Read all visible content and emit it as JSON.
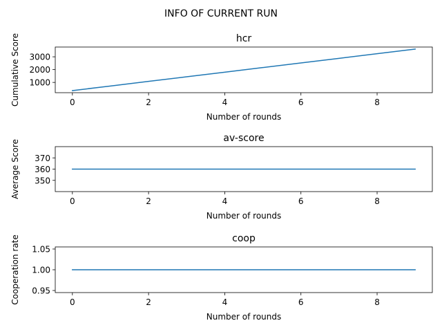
{
  "figure": {
    "suptitle": "INFO OF CURRENT RUN"
  },
  "colors": {
    "line": "#1f77b4",
    "axes": "#000000",
    "background": "#ffffff"
  },
  "chart_data": [
    {
      "type": "line",
      "title": "hcr",
      "xlabel": "Number of rounds",
      "ylabel": "Cumulative Score",
      "x": [
        0,
        1,
        2,
        3,
        4,
        5,
        6,
        7,
        8,
        9
      ],
      "series": [
        {
          "values": [
            360,
            720,
            1080,
            1440,
            1800,
            2160,
            2520,
            2880,
            3240,
            3600
          ]
        }
      ],
      "xlim": [
        -0.45,
        9.45
      ],
      "ylim": [
        198,
        3762
      ],
      "xticks": [
        0,
        2,
        4,
        6,
        8
      ],
      "yticks": [
        1000,
        2000,
        3000
      ],
      "grid": false
    },
    {
      "type": "line",
      "title": "av-score",
      "xlabel": "Number of rounds",
      "ylabel": "Average Score",
      "x": [
        0,
        1,
        2,
        3,
        4,
        5,
        6,
        7,
        8,
        9
      ],
      "series": [
        {
          "values": [
            360,
            360,
            360,
            360,
            360,
            360,
            360,
            360,
            360,
            360
          ]
        }
      ],
      "xlim": [
        -0.45,
        9.45
      ],
      "ylim": [
        340,
        380
      ],
      "xticks": [
        0,
        2,
        4,
        6,
        8
      ],
      "yticks": [
        350,
        360,
        370
      ],
      "grid": false
    },
    {
      "type": "line",
      "title": "coop",
      "xlabel": "Number of rounds",
      "ylabel": "Cooperation rate",
      "x": [
        0,
        1,
        2,
        3,
        4,
        5,
        6,
        7,
        8,
        9
      ],
      "series": [
        {
          "values": [
            1.0,
            1.0,
            1.0,
            1.0,
            1.0,
            1.0,
            1.0,
            1.0,
            1.0,
            1.0
          ]
        }
      ],
      "xlim": [
        -0.45,
        9.45
      ],
      "ylim": [
        0.945,
        1.055
      ],
      "xticks": [
        0,
        2,
        4,
        6,
        8
      ],
      "yticks": [
        0.95,
        1.0,
        1.05
      ],
      "ytick_format": "2dp",
      "grid": false
    }
  ]
}
